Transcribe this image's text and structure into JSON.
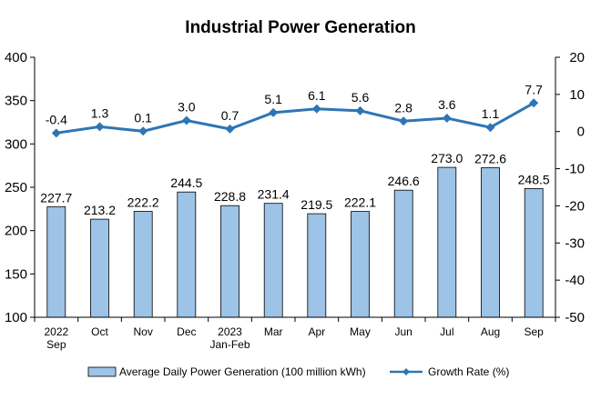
{
  "chart_data": {
    "type": "bar+line",
    "title": "Industrial Power Generation",
    "categories": [
      [
        "2022",
        "Sep"
      ],
      [
        "Oct"
      ],
      [
        "Nov"
      ],
      [
        "Dec"
      ],
      [
        "2023",
        "Jan-Feb"
      ],
      [
        "Mar"
      ],
      [
        "Apr"
      ],
      [
        "May"
      ],
      [
        "Jun"
      ],
      [
        "Jul"
      ],
      [
        "Aug"
      ],
      [
        "Sep"
      ]
    ],
    "series": [
      {
        "name": "Average Daily Power Generation (100 million kWh)",
        "type": "bar",
        "axis": "left",
        "color": "#9DC3E6",
        "values": [
          227.7,
          213.2,
          222.2,
          244.5,
          228.8,
          231.4,
          219.5,
          222.1,
          246.6,
          273.0,
          272.6,
          248.5
        ],
        "labels": [
          "227.7",
          "213.2",
          "222.2",
          "244.5",
          "228.8",
          "231.4",
          "219.5",
          "222.1",
          "246.6",
          "273.0",
          "272.6",
          "248.5"
        ]
      },
      {
        "name": "Growth Rate (%)",
        "type": "line",
        "axis": "right",
        "color": "#2E75B6",
        "values": [
          -0.4,
          1.3,
          0.1,
          3.0,
          0.7,
          5.1,
          6.1,
          5.6,
          2.8,
          3.6,
          1.1,
          7.7
        ],
        "labels": [
          "-0.4",
          "1.3",
          "0.1",
          "3.0",
          "0.7",
          "5.1",
          "6.1",
          "5.6",
          "2.8",
          "3.6",
          "1.1",
          "7.7"
        ]
      }
    ],
    "y_left": {
      "min": 100,
      "max": 400,
      "ticks": [
        100,
        150,
        200,
        250,
        300,
        350,
        400
      ]
    },
    "y_right": {
      "min": -50,
      "max": 20,
      "ticks": [
        -50,
        -40,
        -30,
        -20,
        -10,
        0,
        10,
        20
      ]
    },
    "grid": false,
    "legend_position": "bottom"
  }
}
